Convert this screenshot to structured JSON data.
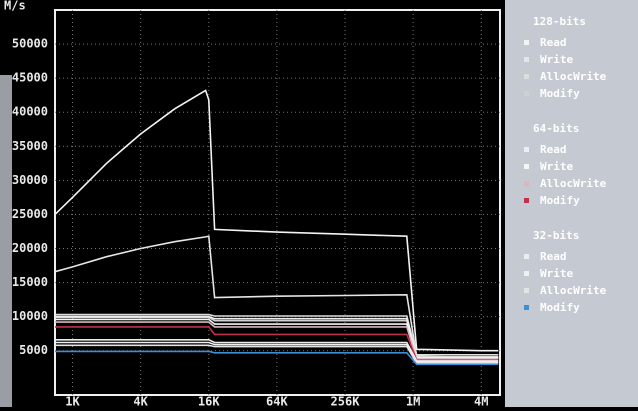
{
  "chart_data": {
    "type": "line",
    "y_label": "M/s",
    "log_x": true,
    "grid": true,
    "x": [
      0.7,
      1,
      2,
      4,
      8,
      15,
      16,
      18,
      64,
      256,
      900,
      1100,
      4096,
      5800
    ],
    "xlim": [
      0.7,
      6000
    ],
    "xticks": [
      {
        "value": 1,
        "label": "1K"
      },
      {
        "value": 4,
        "label": "4K"
      },
      {
        "value": 16,
        "label": "16K"
      },
      {
        "value": 64,
        "label": "64K"
      },
      {
        "value": 256,
        "label": "256K"
      },
      {
        "value": 1024,
        "label": "1M"
      },
      {
        "value": 4096,
        "label": "4M"
      }
    ],
    "ylim": [
      -1500,
      55000
    ],
    "yticks": [
      5000,
      10000,
      15000,
      20000,
      25000,
      30000,
      35000,
      40000,
      45000,
      50000
    ],
    "series": [
      {
        "group": "128-bits",
        "name": "Read",
        "color": "#f4f4f4",
        "values": [
          25000,
          27500,
          32500,
          36800,
          40500,
          43200,
          41800,
          22800,
          22400,
          22100,
          21800,
          5200,
          5000,
          5000
        ]
      },
      {
        "name": "Write",
        "color": "#e6e6e6",
        "values": [
          16600,
          17300,
          18800,
          20000,
          21000,
          21700,
          21800,
          12800,
          13000,
          13100,
          13200,
          4200,
          4000,
          4000
        ]
      },
      {
        "name": "AllocWrite",
        "color": "#dddddd",
        "values": [
          10300,
          10300,
          10300,
          10300,
          10300,
          10300,
          10300,
          10100,
          10100,
          10100,
          10100,
          4400,
          4400,
          4400
        ]
      },
      {
        "name": "Modify",
        "color": "#d0d0d0",
        "values": [
          9900,
          9900,
          9900,
          9900,
          9900,
          9900,
          9900,
          9400,
          9400,
          9400,
          9400,
          4100,
          4100,
          4100
        ]
      },
      {
        "group": "64-bits",
        "name": "Read",
        "color": "#eeeeee",
        "values": [
          10000,
          10000,
          10000,
          10000,
          10000,
          10000,
          10000,
          9700,
          9700,
          9700,
          9700,
          4000,
          4000,
          4000
        ]
      },
      {
        "name": "Write",
        "color": "#f6f6f6",
        "values": [
          9600,
          9600,
          9600,
          9600,
          9600,
          9600,
          9600,
          8900,
          8900,
          8900,
          8900,
          3900,
          3900,
          3900
        ]
      },
      {
        "name": "AllocWrite",
        "color": "#d8b8c0",
        "values": [
          9200,
          9200,
          9200,
          9200,
          9200,
          9200,
          9200,
          8500,
          8500,
          8500,
          8500,
          3800,
          3800,
          3800
        ]
      },
      {
        "name": "Modify",
        "color": "#c0304a",
        "values": [
          8500,
          8500,
          8500,
          8500,
          8500,
          8500,
          8500,
          7400,
          7400,
          7400,
          7400,
          3600,
          3600,
          3600
        ]
      },
      {
        "group": "32-bits",
        "name": "Read",
        "color": "#ececec",
        "values": [
          6600,
          6600,
          6600,
          6600,
          6600,
          6600,
          6600,
          6200,
          6200,
          6200,
          6200,
          3500,
          3500,
          3500
        ]
      },
      {
        "name": "Write",
        "color": "#f0f0f0",
        "values": [
          6200,
          6200,
          6200,
          6200,
          6200,
          6200,
          6200,
          5900,
          5900,
          5900,
          5900,
          3300,
          3300,
          3300
        ]
      },
      {
        "name": "AllocWrite",
        "color": "#e4e4e4",
        "values": [
          5800,
          5800,
          5800,
          5800,
          5800,
          5800,
          5800,
          5600,
          5600,
          5600,
          5600,
          3200,
          3200,
          3200
        ]
      },
      {
        "name": "Modify",
        "color": "#3a8fd8",
        "values": [
          4900,
          4900,
          4900,
          4900,
          4900,
          4900,
          4900,
          4700,
          4700,
          4700,
          4700,
          3000,
          3000,
          3000
        ]
      }
    ]
  }
}
